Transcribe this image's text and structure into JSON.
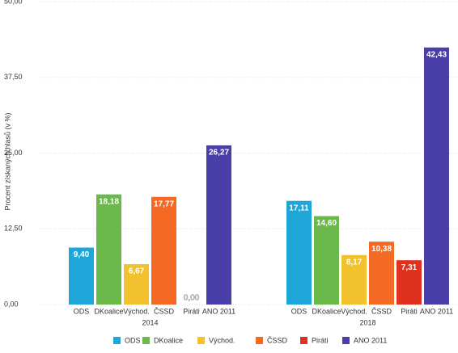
{
  "chart_data": {
    "type": "bar",
    "y_label": "Procent získaných hlasů (v %)",
    "categories": [
      "2014",
      "2018"
    ],
    "series": [
      {
        "name": "ODS",
        "color": "#1ea6d8",
        "values": [
          9.4,
          17.11
        ],
        "value_labels": [
          "9,40",
          "17,11"
        ]
      },
      {
        "name": "DKoalice",
        "color": "#6ab94a",
        "values": [
          18.18,
          14.6
        ],
        "value_labels": [
          "18,18",
          "14,60"
        ]
      },
      {
        "name": "Východ.",
        "color": "#f2c12e",
        "values": [
          6.67,
          8.17
        ],
        "value_labels": [
          "6,67",
          "8,17"
        ]
      },
      {
        "name": "ČSSD",
        "color": "#f46a25",
        "values": [
          17.77,
          10.38
        ],
        "value_labels": [
          "17,77",
          "10,38"
        ]
      },
      {
        "name": "Piráti",
        "color": "#e0301e",
        "values": [
          0.0,
          7.31
        ],
        "value_labels": [
          "0,00",
          "7,31"
        ]
      },
      {
        "name": "ANO 2011",
        "color": "#4a3fa8",
        "values": [
          26.27,
          42.43
        ],
        "value_labels": [
          "26,27",
          "42,43"
        ]
      }
    ],
    "ylim": [
      0,
      50
    ],
    "yticks": [
      {
        "value": 0,
        "label": "0,00"
      },
      {
        "value": 12.5,
        "label": "12,50"
      },
      {
        "value": 25,
        "label": "25,00"
      },
      {
        "value": 37.5,
        "label": "37,50"
      },
      {
        "value": 50,
        "label": "50,00"
      }
    ],
    "grid": true
  }
}
